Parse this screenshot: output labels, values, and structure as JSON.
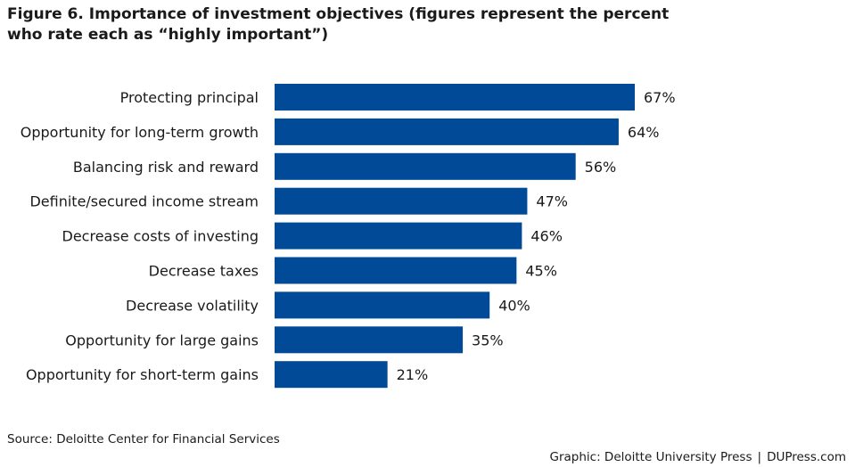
{
  "title": {
    "line1": "Figure 6. Importance of investment objectives (figures represent the percent",
    "line2": "who rate each as “highly important”)"
  },
  "chart_data": {
    "type": "bar",
    "orientation": "horizontal",
    "title": "Figure 6. Importance of investment objectives (figures represent the percent who rate each as “highly important”)",
    "categories": [
      "Protecting principal",
      "Opportunity for long-term growth",
      "Balancing risk and reward",
      "Definite/secured income stream",
      "Decrease costs of investing",
      "Decrease taxes",
      "Decrease volatility",
      "Opportunity for large gains",
      "Opportunity for short-term gains"
    ],
    "values": [
      67,
      64,
      56,
      47,
      46,
      45,
      40,
      35,
      21
    ],
    "value_labels": [
      "67%",
      "64%",
      "56%",
      "47%",
      "46%",
      "45%",
      "40%",
      "35%",
      "21%"
    ],
    "unit": "%",
    "bar_color": "#004a97",
    "grid": false,
    "legend": "none"
  },
  "footer": {
    "source": "Source: Deloitte Center for Financial Services",
    "graphic": "Graphic: Deloitte University Press",
    "separator": "|",
    "site": "DUPress.com"
  }
}
